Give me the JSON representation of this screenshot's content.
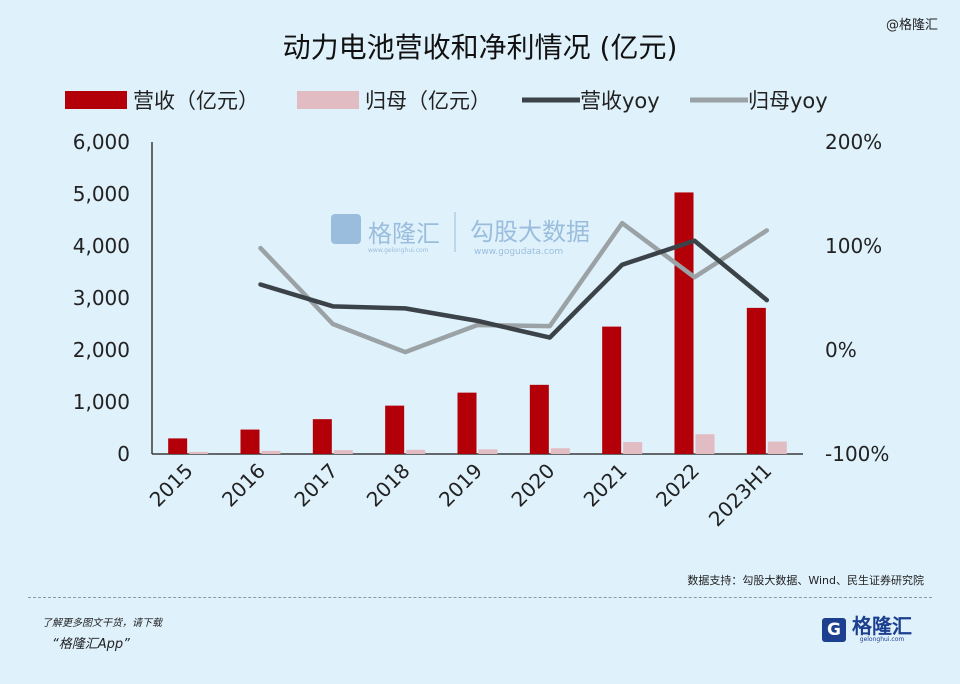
{
  "watermark_corner": "@格隆汇",
  "center_watermark": {
    "brand": "格隆汇",
    "brand_sub": "www.gelonghui.com",
    "data_brand": "勾股大数据",
    "data_sub": "www.gogudata.com"
  },
  "source_note": "数据支持：勾股大数据、Wind、民生证券研究院",
  "promo": {
    "line1": "了解更多图文干货，请下载",
    "line2": "“格隆汇App”"
  },
  "logo": {
    "mark": "G",
    "text": "格隆汇",
    "sub": "gelonghui.com"
  },
  "colors": {
    "revenue": "#b30008",
    "profit": "#e2bcc3",
    "revenue_yoy": "#3b4248",
    "profit_yoy": "#9aa2a6",
    "axis": "#3a3a3a"
  },
  "chart_data": {
    "type": "bar",
    "title": "动力电池营收和净利情况 (亿元)",
    "categories": [
      "2015",
      "2016",
      "2017",
      "2018",
      "2019",
      "2020",
      "2021",
      "2022",
      "2023H1"
    ],
    "series": [
      {
        "name": "营收（亿元）",
        "type": "bar",
        "axis": "left",
        "values": [
          300,
          470,
          670,
          930,
          1180,
          1330,
          2450,
          5030,
          2810
        ]
      },
      {
        "name": "归母（亿元）",
        "type": "bar",
        "axis": "left",
        "values": [
          40,
          60,
          75,
          80,
          90,
          110,
          230,
          380,
          240
        ]
      },
      {
        "name": "营收yoy",
        "type": "line",
        "axis": "right",
        "values": [
          null,
          0.63,
          0.42,
          0.4,
          0.28,
          0.12,
          0.82,
          1.05,
          0.48
        ]
      },
      {
        "name": "归母yoy",
        "type": "line",
        "axis": "right",
        "values": [
          null,
          0.98,
          0.25,
          -0.02,
          0.24,
          0.23,
          1.22,
          0.7,
          1.15
        ]
      }
    ],
    "left_axis": {
      "min": 0,
      "max": 6000,
      "ticks": [
        "0",
        "1,000",
        "2,000",
        "3,000",
        "4,000",
        "5,000",
        "6,000"
      ]
    },
    "right_axis": {
      "min": -1,
      "max": 2,
      "ticks": [
        "-100%",
        "0%",
        "100%",
        "200%"
      ]
    },
    "grid": false,
    "legend_position": "top"
  }
}
